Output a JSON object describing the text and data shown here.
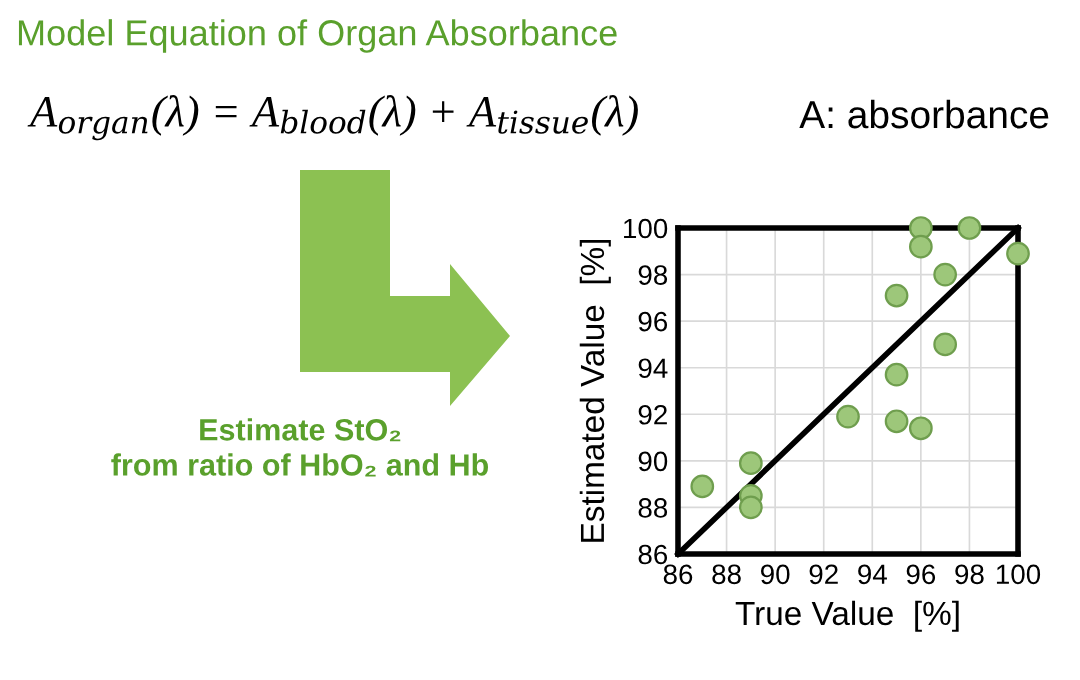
{
  "chart_data": {
    "type": "scatter",
    "title": "Model Equation of Organ Absorbance",
    "xlabel": "True Value  [%]",
    "ylabel": "Estimated Value  [%]",
    "annotations": [
      "A$_{organ}$(λ) = A$_{blood}$(λ) + A$_{tissue}$(λ)",
      "A: absorbance",
      "Estimate StO₂\nfrom ratio of HbO₂ and Hb"
    ],
    "series": [
      {
        "color": "#9dc77a",
        "x": [
          87,
          89,
          89,
          89,
          93,
          95,
          95,
          95,
          96,
          96,
          96,
          97,
          97,
          98,
          100
        ],
        "values": [
          88.9,
          89.9,
          88.5,
          88.0,
          91.9,
          97.1,
          93.7,
          91.7,
          100,
          99.2,
          91.4,
          98.0,
          95.0,
          100,
          98.9
        ]
      },
      {
        "type": "line",
        "marker": "none",
        "color": "#000000",
        "x": [
          86,
          100
        ],
        "values": [
          86,
          100
        ]
      }
    ],
    "xlim": [
      86,
      100
    ],
    "ylim": [
      86,
      100
    ],
    "xticks": [
      86,
      88,
      90,
      92,
      94,
      96,
      98,
      100
    ],
    "yticks": [
      86,
      88,
      90,
      92,
      94,
      96,
      98,
      100
    ],
    "grid": true,
    "marker": "circle",
    "line_style": "solid"
  }
}
